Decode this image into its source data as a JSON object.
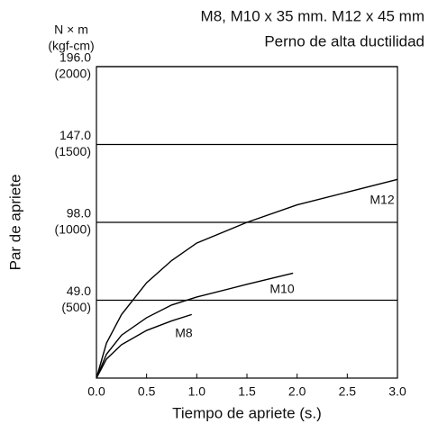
{
  "chart_data": {
    "type": "line",
    "title": "M8, M10 x 35 mm. M12 x 45 mm",
    "subtitle": "Perno de alta ductilidad",
    "y_unit": "N × m",
    "y_unit_secondary": "(kgf-cm)",
    "x_label": "Tiempo de apriete (s.)",
    "y_label": "Par de apriete",
    "xlim": [
      0,
      3
    ],
    "ylim": [
      0,
      196
    ],
    "xticks": [
      {
        "value": 0,
        "label": "0.0"
      },
      {
        "value": 0.5,
        "label": "0.5"
      },
      {
        "value": 1,
        "label": "1.0"
      },
      {
        "value": 1.5,
        "label": "1.5"
      },
      {
        "value": 2,
        "label": "2.0"
      },
      {
        "value": 2.5,
        "label": "2.5"
      },
      {
        "value": 3,
        "label": "3.0"
      }
    ],
    "yticks": [
      {
        "value": 49,
        "label": "49.0"
      },
      {
        "value": 98,
        "label": "98.0"
      },
      {
        "value": 147,
        "label": "147.0"
      },
      {
        "value": 196,
        "label": "196.0"
      }
    ],
    "ytick_secondary_labels": [
      "(500)",
      "(1000)",
      "(1500)",
      "(2000)"
    ],
    "grid": true,
    "series": [
      {
        "name": "M12",
        "color": "#000000",
        "x": [
          0,
          0.1,
          0.25,
          0.5,
          0.75,
          1,
          1.5,
          2,
          2.5,
          3
        ],
        "values": [
          0,
          22,
          40,
          60,
          74,
          85,
          98,
          109,
          117,
          125
        ]
      },
      {
        "name": "M10",
        "color": "#000000",
        "x": [
          0,
          0.1,
          0.25,
          0.5,
          0.75,
          1,
          1.5,
          1.96
        ],
        "values": [
          0,
          15,
          27,
          38,
          46,
          51,
          59,
          66
        ]
      },
      {
        "name": "M8",
        "color": "#000000",
        "x": [
          0,
          0.1,
          0.25,
          0.5,
          0.75,
          0.95
        ],
        "values": [
          0,
          12,
          21,
          30,
          36,
          40
        ]
      }
    ]
  }
}
